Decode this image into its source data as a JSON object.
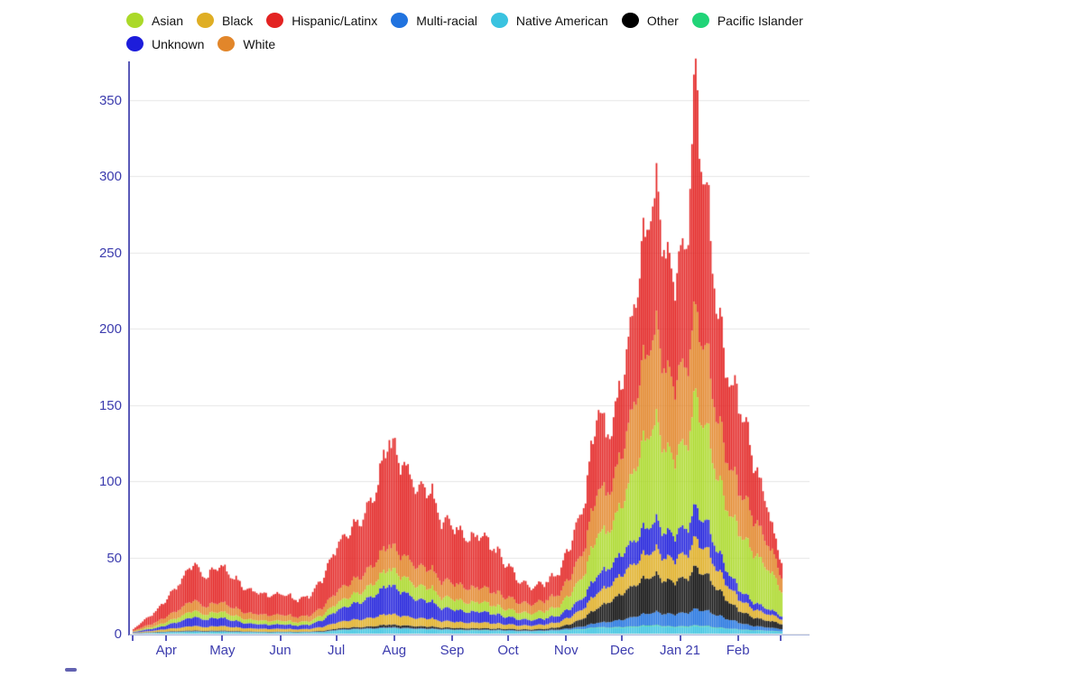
{
  "page": {
    "background": "#ffffff"
  },
  "legend": {
    "rows": [
      [
        {
          "label": "Asian",
          "color": "#abd929"
        },
        {
          "label": "Black",
          "color": "#dfae24"
        },
        {
          "label": "Hispanic/Latinx",
          "color": "#e32322"
        },
        {
          "label": "Multi-racial",
          "color": "#2173df"
        },
        {
          "label": "Native American",
          "color": "#3ac3e0"
        },
        {
          "label": "Other",
          "color": "#000000"
        },
        {
          "label": "Pacific Islander",
          "color": "#21d478"
        }
      ],
      [
        {
          "label": "Unknown",
          "color": "#1d1ddb"
        },
        {
          "label": "White",
          "color": "#e2862a"
        }
      ]
    ]
  },
  "chart_data": {
    "type": "bar",
    "stacked": true,
    "title": "",
    "xlabel": "",
    "ylabel": "",
    "x_unit": "day",
    "start_date_label": "mid-Mar 2020",
    "end_date_label": "late Feb 2021",
    "grid": true,
    "legend_position": "top",
    "ylim": [
      0,
      380
    ],
    "y_ticks": [
      0,
      50,
      100,
      150,
      200,
      250,
      300,
      350
    ],
    "x_ticks": [
      {
        "label": "Apr",
        "day": 18
      },
      {
        "label": "May",
        "day": 48
      },
      {
        "label": "Jun",
        "day": 79
      },
      {
        "label": "Jul",
        "day": 109
      },
      {
        "label": "Aug",
        "day": 140
      },
      {
        "label": "Sep",
        "day": 171
      },
      {
        "label": "Oct",
        "day": 201
      },
      {
        "label": "Nov",
        "day": 232
      },
      {
        "label": "Dec",
        "day": 262
      },
      {
        "label": "Jan 21",
        "day": 293
      },
      {
        "label": "Feb",
        "day": 324
      }
    ],
    "edge_tick_days": [
      0,
      347
    ],
    "total_days": 348,
    "keyframe_days": [
      0,
      7,
      14,
      18,
      25,
      32,
      39,
      46,
      53,
      60,
      67,
      74,
      81,
      88,
      95,
      102,
      109,
      116,
      123,
      130,
      137,
      144,
      151,
      158,
      165,
      172,
      179,
      186,
      193,
      200,
      207,
      214,
      221,
      228,
      235,
      242,
      249,
      253,
      256,
      263,
      270,
      277,
      280,
      284,
      288,
      292,
      296,
      299,
      301,
      303,
      306,
      310,
      313,
      317,
      321,
      324,
      328,
      331,
      335,
      339,
      343,
      347
    ],
    "series": [
      {
        "name": "Native American",
        "color": "#3ac3e0",
        "values": [
          0.2,
          0.4,
          0.6,
          0.8,
          1.0,
          1.2,
          1.0,
          1.2,
          1.0,
          0.8,
          0.8,
          0.7,
          0.8,
          0.7,
          0.8,
          1.0,
          2.0,
          2.4,
          2.8,
          3.0,
          3.4,
          3.0,
          2.8,
          2.8,
          2.4,
          2.2,
          2.0,
          2.1,
          1.9,
          1.8,
          1.5,
          1.5,
          1.6,
          2.0,
          2.4,
          3.0,
          4.0,
          3.6,
          3.8,
          4.0,
          4.6,
          5.0,
          5.0,
          4.6,
          4.2,
          4.3,
          4.4,
          4.8,
          5.0,
          4.8,
          4.6,
          4.0,
          3.6,
          3.2,
          2.8,
          2.5,
          2.2,
          2.0,
          2.0,
          1.8,
          1.5,
          1.4
        ]
      },
      {
        "name": "Pacific Islander",
        "color": "#21d478",
        "values": [
          0,
          0,
          0.1,
          0.1,
          0.1,
          0.1,
          0.1,
          0.1,
          0.1,
          0.1,
          0.1,
          0.1,
          0.1,
          0.1,
          0.1,
          0.1,
          0.2,
          0.2,
          0.2,
          0.2,
          0.3,
          0.3,
          0.2,
          0.2,
          0.2,
          0.2,
          0.2,
          0.2,
          0.2,
          0.2,
          0.1,
          0.1,
          0.2,
          0.2,
          0.3,
          0.3,
          0.4,
          0.3,
          0.4,
          0.4,
          0.4,
          0.5,
          0.5,
          0.4,
          0.4,
          0.4,
          0.5,
          0.5,
          0.5,
          0.5,
          0.5,
          0.4,
          0.4,
          0.3,
          0.3,
          0.3,
          0.3,
          0.3,
          0.2,
          0.2,
          0.2,
          0.2
        ]
      },
      {
        "name": "Multi-racial",
        "color": "#2173df",
        "values": [
          0.1,
          0.2,
          0.2,
          0.3,
          0.3,
          0.4,
          0.3,
          0.3,
          0.3,
          0.3,
          0.2,
          0.2,
          0.2,
          0.2,
          0.3,
          0.3,
          0.4,
          0.5,
          0.5,
          0.5,
          0.6,
          0.6,
          0.5,
          0.5,
          0.4,
          0.4,
          0.4,
          0.4,
          0.4,
          0.4,
          0.4,
          0.4,
          0.5,
          0.6,
          1.0,
          2.0,
          3.0,
          3.4,
          4.0,
          5.0,
          7.0,
          8.0,
          8.5,
          8.0,
          8.0,
          8.5,
          9.0,
          10.0,
          11.0,
          10.5,
          10.0,
          9.0,
          8.0,
          6.5,
          5.5,
          4.5,
          3.5,
          3.0,
          2.5,
          2.2,
          1.8,
          1.6
        ]
      },
      {
        "name": "Other",
        "color": "#0a0a0a",
        "values": [
          0.1,
          0.2,
          0.3,
          0.3,
          0.4,
          0.5,
          0.4,
          0.5,
          0.4,
          0.3,
          0.3,
          0.3,
          0.3,
          0.3,
          0.3,
          0.5,
          0.8,
          1.0,
          1.0,
          1.4,
          1.8,
          1.6,
          1.4,
          1.4,
          1.0,
          1.0,
          0.9,
          0.9,
          0.8,
          0.8,
          0.8,
          0.8,
          1.0,
          1.6,
          3.0,
          6.0,
          10.0,
          12.0,
          14.0,
          18.0,
          22.0,
          24.0,
          24.0,
          22.0,
          21.0,
          22.0,
          23.0,
          26.0,
          28.0,
          26.0,
          24.0,
          20.0,
          17.0,
          13.0,
          10.0,
          8.0,
          7.0,
          6.0,
          5.0,
          4.5,
          4.0,
          3.5
        ]
      },
      {
        "name": "Black",
        "color": "#dfae24",
        "values": [
          0.3,
          0.7,
          1.2,
          1.6,
          2.1,
          3.0,
          2.5,
          3.0,
          2.6,
          2.0,
          1.9,
          1.8,
          1.8,
          1.5,
          1.8,
          2.8,
          4.0,
          4.8,
          5.2,
          6.0,
          7.0,
          6.2,
          5.2,
          5.4,
          4.2,
          4.0,
          3.6,
          3.8,
          3.4,
          3.0,
          2.6,
          2.5,
          2.9,
          3.4,
          5.0,
          7.0,
          10.5,
          10.0,
          11.0,
          13.0,
          15.0,
          16.0,
          16.5,
          15.0,
          14.5,
          15.0,
          16.0,
          18.0,
          19.0,
          18.0,
          17.0,
          14.5,
          12.5,
          10.5,
          9.0,
          7.5,
          6.5,
          5.8,
          5.0,
          4.4,
          3.8,
          3.2
        ]
      },
      {
        "name": "Unknown",
        "color": "#1d1ddb",
        "values": [
          0.4,
          1.2,
          1.8,
          2.6,
          4.2,
          6.0,
          5.0,
          5.5,
          4.5,
          3.2,
          3.0,
          2.8,
          2.9,
          2.5,
          2.9,
          4.8,
          7.8,
          10.0,
          12.0,
          15.0,
          19.5,
          16.0,
          12.5,
          12.0,
          8.5,
          8.0,
          7.0,
          7.2,
          6.2,
          5.0,
          4.0,
          3.6,
          4.0,
          4.4,
          6.0,
          8.0,
          12.0,
          11.5,
          12.5,
          14.0,
          16.0,
          18.0,
          18.5,
          17.0,
          16.0,
          16.5,
          17.5,
          19.5,
          21.0,
          19.5,
          18.0,
          15.0,
          12.5,
          10.0,
          8.0,
          6.5,
          5.5,
          4.8,
          4.2,
          3.6,
          2.8,
          2.2
        ]
      },
      {
        "name": "Asian",
        "color": "#abd929",
        "values": [
          0.3,
          0.9,
          1.6,
          2.1,
          3.1,
          4.2,
          3.2,
          4.0,
          3.5,
          2.6,
          2.5,
          2.3,
          2.4,
          2.1,
          2.4,
          3.4,
          5.0,
          5.8,
          6.8,
          8.8,
          10.8,
          10.0,
          9.0,
          9.2,
          7.0,
          6.8,
          6.0,
          6.2,
          5.6,
          5.0,
          4.4,
          4.3,
          5.0,
          6.2,
          10.0,
          16.0,
          28.0,
          24.0,
          26.0,
          35.0,
          52.0,
          62.0,
          64.0,
          56.0,
          50.0,
          53.0,
          56.0,
          66.0,
          76.0,
          68.0,
          62.0,
          54.0,
          48.0,
          42.0,
          39.0,
          38.0,
          35.0,
          34.0,
          30.0,
          27.0,
          22.0,
          17.0
        ]
      },
      {
        "name": "White",
        "color": "#e2862a",
        "values": [
          0.5,
          1.6,
          2.7,
          3.6,
          5.2,
          7.0,
          5.2,
          6.2,
          5.2,
          4.1,
          4.0,
          3.8,
          3.9,
          3.4,
          3.9,
          5.1,
          7.8,
          9.0,
          10.8,
          13.0,
          15.8,
          14.0,
          12.8,
          13.0,
          10.8,
          10.4,
          9.4,
          9.7,
          8.8,
          8.0,
          6.4,
          6.0,
          7.0,
          8.2,
          12.0,
          18.0,
          30.0,
          25.0,
          26.5,
          35.5,
          48.0,
          58.0,
          60.0,
          54.0,
          48.0,
          50.0,
          52.0,
          58.0,
          55.0,
          56.0,
          52.0,
          44.0,
          38.0,
          33.0,
          30.0,
          28.0,
          26.0,
          24.0,
          20.0,
          17.0,
          13.0,
          10.0
        ]
      },
      {
        "name": "Hispanic/Latinx",
        "color": "#e32322",
        "values": [
          1.1,
          4.8,
          8.5,
          11.6,
          17.6,
          24.6,
          19.3,
          24.2,
          20.4,
          15.6,
          14.2,
          13.0,
          13.6,
          11.2,
          13.5,
          20.0,
          30.0,
          34.3,
          38.7,
          47.1,
          69.8,
          60.3,
          51.6,
          53.5,
          39.5,
          37.0,
          32.5,
          34.5,
          28.7,
          21.8,
          13.8,
          10.8,
          12.0,
          14.4,
          22.3,
          32.0,
          54.0,
          38.0,
          38.5,
          50.0,
          70.5,
          87.5,
          90.0,
          79.0,
          68.4,
          72.0,
          80.0,
          125.0,
          161.0,
          128.0,
          105.0,
          86.0,
          70.0,
          59.0,
          55.0,
          57.0,
          49.0,
          41.0,
          31.0,
          26.0,
          13.0,
          11.0
        ]
      }
    ],
    "weekly_pattern": [
      1.05,
      1.02,
      0.97,
      0.94,
      0.96,
      1.0,
      1.04
    ],
    "noise_amp": 0.04
  },
  "axis_style": {
    "tick_color": "#5b5bbf",
    "label_color": "#3c3cae",
    "grid_color": "#e6e6e6",
    "axis_line_color": "#5a5ab8",
    "baseline_color": "#aab6dd"
  }
}
